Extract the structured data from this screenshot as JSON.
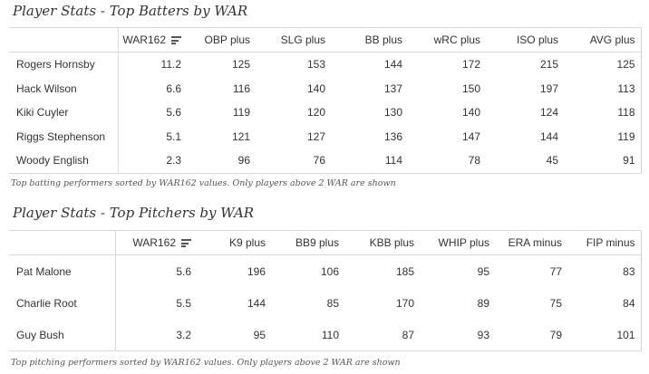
{
  "batters": {
    "title": "Player Stats - Top Batters by WAR",
    "columns": [
      "",
      "WAR162",
      "OBP plus",
      "SLG plus",
      "BB plus",
      "wRC plus",
      "ISO plus",
      "AVG plus"
    ],
    "rows": [
      [
        "Rogers Hornsby",
        "11.2",
        "125",
        "153",
        "144",
        "172",
        "215",
        "125"
      ],
      [
        "Hack Wilson",
        "6.6",
        "116",
        "140",
        "137",
        "150",
        "197",
        "113"
      ],
      [
        "Kiki Cuyler",
        "5.6",
        "119",
        "120",
        "130",
        "140",
        "124",
        "118"
      ],
      [
        "Riggs Stephenson",
        "5.1",
        "121",
        "127",
        "136",
        "147",
        "144",
        "119"
      ],
      [
        "Woody English",
        "2.3",
        "96",
        "76",
        "114",
        "78",
        "45",
        "91"
      ]
    ],
    "caption": "Top batting performers sorted by WAR162 values. Only players above 2 WAR are shown"
  },
  "pitchers": {
    "title": "Player Stats - Top Pitchers by WAR",
    "columns": [
      "",
      "WAR162",
      "K9 plus",
      "BB9 plus",
      "KBB plus",
      "WHIP plus",
      "ERA minus",
      "FIP minus"
    ],
    "rows": [
      [
        "Pat Malone",
        "5.6",
        "196",
        "106",
        "185",
        "95",
        "77",
        "83"
      ],
      [
        "Charlie Root",
        "5.5",
        "144",
        "85",
        "170",
        "89",
        "75",
        "84"
      ],
      [
        "Guy Bush",
        "3.2",
        "95",
        "110",
        "87",
        "93",
        "79",
        "101"
      ]
    ],
    "caption": "Top pitching performers sorted by WAR162 values. Only players above 2 WAR are shown"
  },
  "icons": {
    "sort": "sort-descending-icon"
  }
}
